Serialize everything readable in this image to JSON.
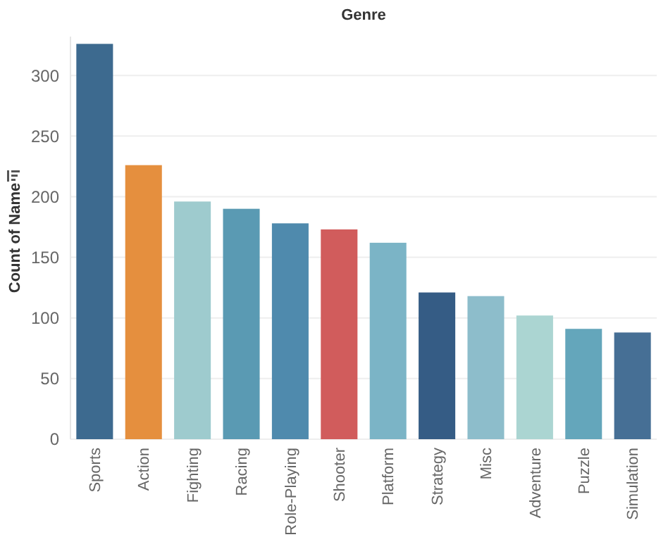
{
  "chart_data": {
    "type": "bar",
    "title": "Genre",
    "ylabel": "Count of Name",
    "categories": [
      "Sports",
      "Action",
      "Fighting",
      "Racing",
      "Role-Playing",
      "Shooter",
      "Platform",
      "Strategy",
      "Misc",
      "Adventure",
      "Puzzle",
      "Simulation"
    ],
    "values": [
      326,
      226,
      196,
      190,
      178,
      173,
      162,
      121,
      118,
      102,
      91,
      88
    ],
    "colors": [
      "#3d6a8f",
      "#e58f3e",
      "#9ecbce",
      "#5a9ab3",
      "#4f8aad",
      "#d15c5c",
      "#7bb4c6",
      "#355c85",
      "#8dbdcb",
      "#abd5d2",
      "#64a6bb",
      "#466f95"
    ],
    "ylim": [
      0,
      332
    ],
    "yticks": [
      0,
      50,
      100,
      150,
      200,
      250,
      300
    ],
    "grid": "y"
  }
}
